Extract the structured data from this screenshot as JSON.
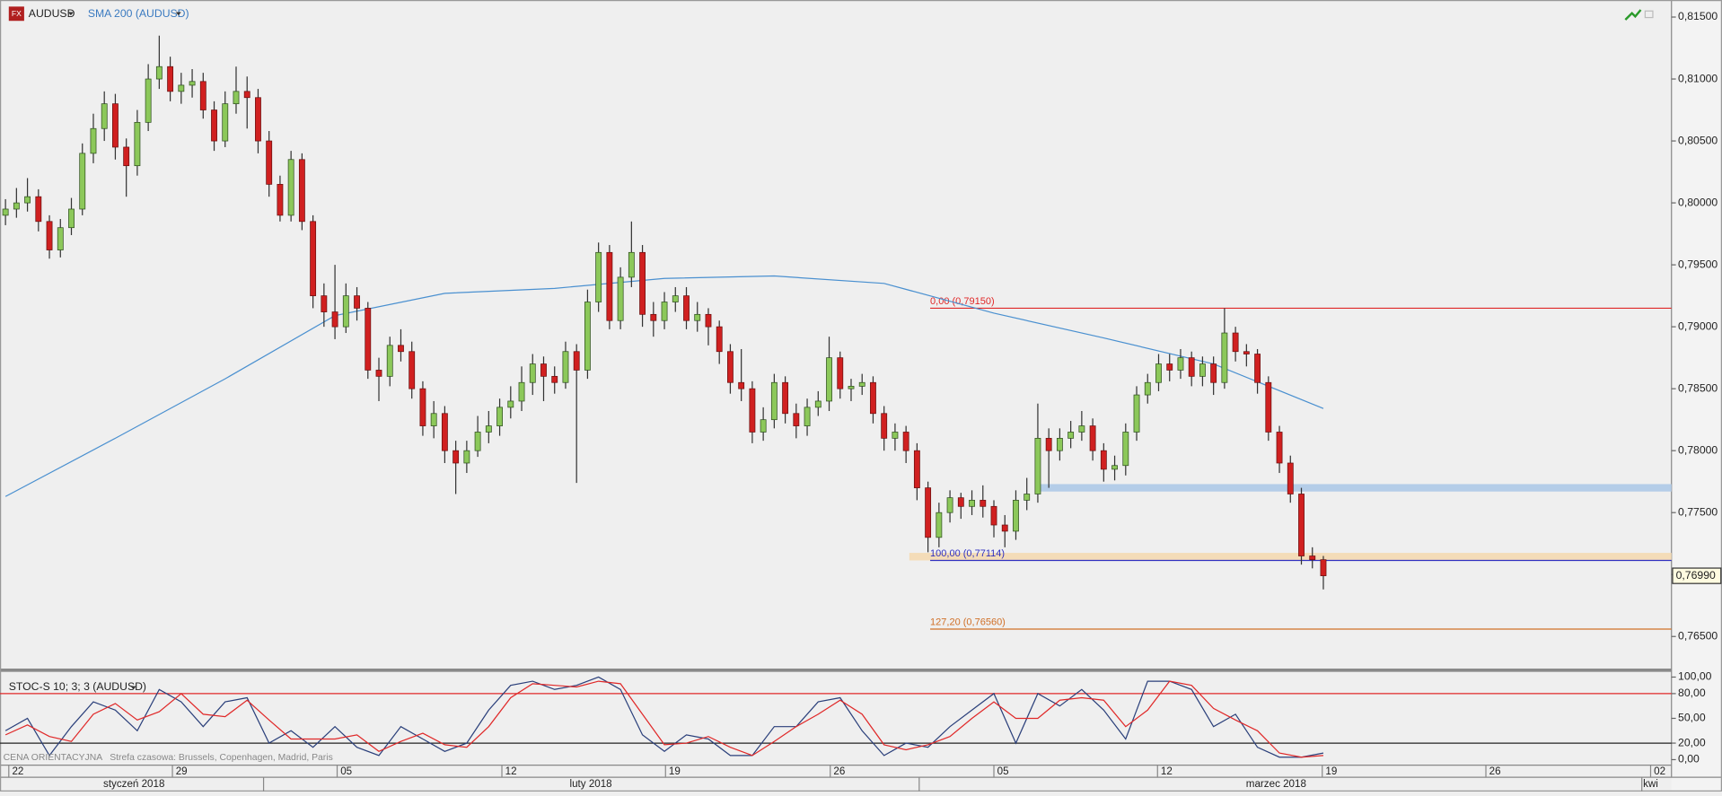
{
  "chart_data": [
    {
      "type": "candlestick",
      "title": "AUDUSD",
      "xlim": [
        -0.5,
        151.7
      ],
      "ylim": [
        0.7625,
        0.8162
      ],
      "yticks": [
        {
          "value": 0.815,
          "label": "0,81500"
        },
        {
          "value": 0.81,
          "label": "0,81000"
        },
        {
          "value": 0.805,
          "label": "0,80500"
        },
        {
          "value": 0.8,
          "label": "0,80000"
        },
        {
          "value": 0.795,
          "label": "0,79500"
        },
        {
          "value": 0.79,
          "label": "0,79000"
        },
        {
          "value": 0.785,
          "label": "0,78500"
        },
        {
          "value": 0.78,
          "label": "0,78000"
        },
        {
          "value": 0.775,
          "label": "0,77500"
        },
        {
          "value": 0.77,
          "label": "0,77000"
        },
        {
          "value": 0.765,
          "label": "0,76500"
        }
      ],
      "open": [
        0.799,
        0.7995,
        0.8,
        0.8005,
        0.7985,
        0.7962,
        0.798,
        0.7995,
        0.804,
        0.806,
        0.808,
        0.8045,
        0.803,
        0.8065,
        0.81,
        0.811,
        0.809,
        0.8095,
        0.8098,
        0.8075,
        0.805,
        0.808,
        0.809,
        0.8085,
        0.805,
        0.8015,
        0.799,
        0.8035,
        0.7985,
        0.7925,
        0.7912,
        0.79,
        0.7925,
        0.7915,
        0.7865,
        0.786,
        0.7885,
        0.788,
        0.785,
        0.782,
        0.783,
        0.78,
        0.779,
        0.78,
        0.7815,
        0.782,
        0.7835,
        0.784,
        0.7855,
        0.787,
        0.786,
        0.7855,
        0.788,
        0.7865,
        0.792,
        0.796,
        0.7905,
        0.794,
        0.796,
        0.791,
        0.7905,
        0.792,
        0.7925,
        0.7905,
        0.791,
        0.79,
        0.788,
        0.7855,
        0.785,
        0.7815,
        0.7825,
        0.7855,
        0.783,
        0.782,
        0.7835,
        0.784,
        0.7875,
        0.785,
        0.7852,
        0.7855,
        0.783,
        0.781,
        0.7815,
        0.78,
        0.777,
        0.773,
        0.775,
        0.7762,
        0.7755,
        0.776,
        0.7755,
        0.774,
        0.7735,
        0.776,
        0.7765,
        0.781,
        0.78,
        0.781,
        0.7815,
        0.782,
        0.78,
        0.7785,
        0.7788,
        0.7815,
        0.7845,
        0.7855,
        0.787,
        0.7865,
        0.7875,
        0.786,
        0.787,
        0.7855,
        0.7895,
        0.788,
        0.7878,
        0.7855,
        0.7815,
        0.779,
        0.7765,
        0.7715,
        0.7712
      ],
      "high": [
        0.8003,
        0.8012,
        0.802,
        0.8011,
        0.799,
        0.7987,
        0.8004,
        0.8048,
        0.8072,
        0.809,
        0.8088,
        0.8052,
        0.8075,
        0.8112,
        0.8135,
        0.8118,
        0.8105,
        0.8108,
        0.8105,
        0.8082,
        0.809,
        0.811,
        0.8102,
        0.8092,
        0.8058,
        0.8022,
        0.8042,
        0.804,
        0.799,
        0.7935,
        0.795,
        0.7935,
        0.7932,
        0.792,
        0.7875,
        0.7892,
        0.7898,
        0.7888,
        0.7856,
        0.784,
        0.7836,
        0.7808,
        0.7808,
        0.7828,
        0.7832,
        0.7842,
        0.7852,
        0.7868,
        0.7878,
        0.7876,
        0.7868,
        0.7888,
        0.7886,
        0.793,
        0.7968,
        0.7966,
        0.7948,
        0.7985,
        0.7966,
        0.792,
        0.7928,
        0.7932,
        0.7932,
        0.792,
        0.7915,
        0.7905,
        0.7886,
        0.7882,
        0.7856,
        0.7835,
        0.7862,
        0.786,
        0.7838,
        0.7842,
        0.7848,
        0.7892,
        0.788,
        0.7858,
        0.7862,
        0.786,
        0.7836,
        0.7822,
        0.782,
        0.7806,
        0.7775,
        0.7758,
        0.7768,
        0.7766,
        0.7768,
        0.7772,
        0.776,
        0.7748,
        0.7768,
        0.7778,
        0.7838,
        0.7818,
        0.7818,
        0.7824,
        0.7832,
        0.7826,
        0.7806,
        0.7796,
        0.7822,
        0.7852,
        0.7862,
        0.7878,
        0.7878,
        0.7882,
        0.788,
        0.7876,
        0.7876,
        0.7915,
        0.79,
        0.7886,
        0.7882,
        0.786,
        0.782,
        0.7796,
        0.777,
        0.7722,
        0.7715
      ],
      "low": [
        0.7982,
        0.7988,
        0.7993,
        0.7977,
        0.7955,
        0.7956,
        0.7974,
        0.799,
        0.8032,
        0.805,
        0.8035,
        0.8005,
        0.8022,
        0.8058,
        0.8092,
        0.8082,
        0.808,
        0.8085,
        0.8068,
        0.8042,
        0.8045,
        0.8072,
        0.806,
        0.804,
        0.8005,
        0.7985,
        0.7985,
        0.7978,
        0.7915,
        0.79,
        0.789,
        0.7895,
        0.7905,
        0.7858,
        0.784,
        0.7852,
        0.7872,
        0.7842,
        0.7812,
        0.781,
        0.779,
        0.7765,
        0.7782,
        0.7795,
        0.7806,
        0.7812,
        0.7826,
        0.7832,
        0.7845,
        0.784,
        0.7846,
        0.785,
        0.7774,
        0.7858,
        0.7912,
        0.7898,
        0.7898,
        0.7932,
        0.79,
        0.7892,
        0.7898,
        0.7912,
        0.7898,
        0.7896,
        0.7885,
        0.787,
        0.7846,
        0.784,
        0.7806,
        0.7808,
        0.7818,
        0.7822,
        0.781,
        0.7812,
        0.7828,
        0.7832,
        0.7842,
        0.784,
        0.7845,
        0.7822,
        0.78,
        0.78,
        0.779,
        0.776,
        0.7718,
        0.7722,
        0.7742,
        0.7745,
        0.7748,
        0.7746,
        0.773,
        0.7722,
        0.7728,
        0.7752,
        0.7758,
        0.777,
        0.7792,
        0.7802,
        0.7808,
        0.7792,
        0.7775,
        0.7776,
        0.778,
        0.7808,
        0.7838,
        0.7848,
        0.7856,
        0.7858,
        0.7852,
        0.7852,
        0.7845,
        0.785,
        0.7872,
        0.7868,
        0.7846,
        0.7808,
        0.7782,
        0.7758,
        0.7708,
        0.7705,
        0.7688
      ],
      "close": [
        0.7995,
        0.8,
        0.8005,
        0.7985,
        0.7962,
        0.798,
        0.7995,
        0.804,
        0.806,
        0.808,
        0.8045,
        0.803,
        0.8065,
        0.81,
        0.811,
        0.809,
        0.8095,
        0.8098,
        0.8075,
        0.805,
        0.808,
        0.809,
        0.8085,
        0.805,
        0.8015,
        0.799,
        0.8035,
        0.7985,
        0.7925,
        0.7912,
        0.79,
        0.7925,
        0.7915,
        0.7865,
        0.786,
        0.7885,
        0.788,
        0.785,
        0.782,
        0.783,
        0.78,
        0.779,
        0.78,
        0.7815,
        0.782,
        0.7835,
        0.784,
        0.7855,
        0.787,
        0.786,
        0.7855,
        0.788,
        0.7865,
        0.792,
        0.796,
        0.7905,
        0.794,
        0.796,
        0.791,
        0.7905,
        0.792,
        0.7925,
        0.7905,
        0.791,
        0.79,
        0.788,
        0.7855,
        0.785,
        0.7815,
        0.7825,
        0.7855,
        0.783,
        0.782,
        0.7835,
        0.784,
        0.7875,
        0.785,
        0.7852,
        0.7855,
        0.783,
        0.781,
        0.7815,
        0.78,
        0.777,
        0.773,
        0.775,
        0.7762,
        0.7755,
        0.776,
        0.7755,
        0.774,
        0.7735,
        0.776,
        0.7765,
        0.781,
        0.78,
        0.781,
        0.7815,
        0.782,
        0.78,
        0.7785,
        0.7788,
        0.7815,
        0.7845,
        0.7855,
        0.787,
        0.7865,
        0.7875,
        0.786,
        0.787,
        0.7855,
        0.7895,
        0.788,
        0.7878,
        0.7855,
        0.7815,
        0.779,
        0.7765,
        0.7715,
        0.7712,
        0.7699
      ],
      "up_color": "#8cc85a",
      "down_color": "#d02020",
      "series": [
        {
          "name": "SMA 200 (AUDUSD)",
          "color": "#4a90d0",
          "x": [
            0,
            10,
            20,
            30,
            40,
            50,
            60,
            70,
            80,
            90,
            100,
            110,
            120
          ],
          "values": [
            0.7763,
            0.781,
            0.7858,
            0.7909,
            0.7927,
            0.7931,
            0.7939,
            0.7941,
            0.7935,
            0.7911,
            0.7891,
            0.787,
            0.7834
          ]
        }
      ],
      "fib_levels": [
        {
          "label": "0,00 (0,79150)",
          "value": 0.7915,
          "start_x": 84.2,
          "color": "#e02828"
        },
        {
          "label": "100,00 (0,77114)",
          "value": 0.77114,
          "start_x": 84.2,
          "color": "#3030c0"
        },
        {
          "label": "127,20 (0,76560)",
          "value": 0.7656,
          "start_x": 84.2,
          "color": "#d07028"
        }
      ],
      "zones": [
        {
          "from": 0.7767,
          "to": 0.7773,
          "start_x": 93.8,
          "color": "#b4cde8"
        },
        {
          "from": 0.77114,
          "to": 0.77175,
          "start_x": 82.3,
          "color": "#f4dcb8"
        }
      ],
      "last_price": {
        "value": 0.7699,
        "label": "0,76990"
      }
    },
    {
      "type": "line",
      "title": "STOC-S 10; 3; 3 (AUDUSD)",
      "note": "CENA ORIENTACYJNA   Strefa czasowa: Brussels, Copenhagen, Madrid, Paris",
      "xlim": [
        -0.5,
        151.7
      ],
      "ylim": [
        -6.7,
        105
      ],
      "yticks": [
        {
          "value": 100,
          "label": "100,00"
        },
        {
          "value": 80,
          "label": "80,00"
        },
        {
          "value": 50,
          "label": "50,00"
        },
        {
          "value": 20,
          "label": "20,00"
        },
        {
          "value": 0,
          "label": "0,00"
        }
      ],
      "levels": [
        {
          "value": 80,
          "color": "#e02828"
        },
        {
          "value": 20,
          "color": "#222222"
        }
      ],
      "xticks": [
        {
          "value": 0.3,
          "label": "22"
        },
        {
          "value": 15.2,
          "label": "29"
        },
        {
          "value": 30.2,
          "label": "05"
        },
        {
          "value": 45.2,
          "label": "12"
        },
        {
          "value": 60.1,
          "label": "19"
        },
        {
          "value": 75.1,
          "label": "26"
        },
        {
          "value": 90.0,
          "label": "05"
        },
        {
          "value": 104.9,
          "label": "12"
        },
        {
          "value": 119.9,
          "label": "19"
        },
        {
          "value": 134.8,
          "label": "26"
        },
        {
          "value": 149.8,
          "label": "02"
        }
      ],
      "month_labels": [
        "styczeń 2018",
        "luty 2018",
        "marzec 2018",
        "kwi"
      ],
      "x": [
        0,
        2,
        4,
        6,
        8,
        10,
        12,
        14,
        16,
        18,
        20,
        22,
        24,
        26,
        28,
        30,
        32,
        34,
        36,
        38,
        40,
        42,
        44,
        46,
        48,
        50,
        52,
        54,
        56,
        58,
        60,
        62,
        64,
        66,
        68,
        70,
        72,
        74,
        76,
        78,
        80,
        82,
        84,
        86,
        88,
        90,
        92,
        94,
        96,
        98,
        100,
        102,
        104,
        106,
        108,
        110,
        112,
        114,
        116,
        118,
        120
      ],
      "series": [
        {
          "color": "#2a3f7a",
          "values": [
            35,
            50,
            5,
            40,
            70,
            60,
            35,
            85,
            70,
            40,
            70,
            75,
            20,
            35,
            15,
            40,
            15,
            5,
            40,
            25,
            10,
            20,
            60,
            90,
            95,
            85,
            90,
            100,
            85,
            30,
            10,
            30,
            25,
            5,
            5,
            40,
            40,
            70,
            75,
            35,
            5,
            20,
            15,
            40,
            60,
            80,
            20,
            80,
            65,
            85,
            60,
            25,
            95,
            95,
            85,
            40,
            55,
            15,
            3,
            3,
            8
          ]
        },
        {
          "color": "#e02828",
          "values": [
            30,
            42,
            28,
            22,
            55,
            68,
            48,
            58,
            80,
            55,
            52,
            72,
            48,
            25,
            25,
            25,
            30,
            10,
            22,
            32,
            18,
            15,
            40,
            75,
            92,
            90,
            88,
            95,
            92,
            55,
            18,
            20,
            28,
            15,
            5,
            22,
            40,
            55,
            72,
            55,
            18,
            12,
            18,
            28,
            50,
            70,
            50,
            50,
            72,
            75,
            72,
            40,
            60,
            95,
            90,
            62,
            48,
            35,
            8,
            3,
            5
          ]
        }
      ]
    }
  ]
}
